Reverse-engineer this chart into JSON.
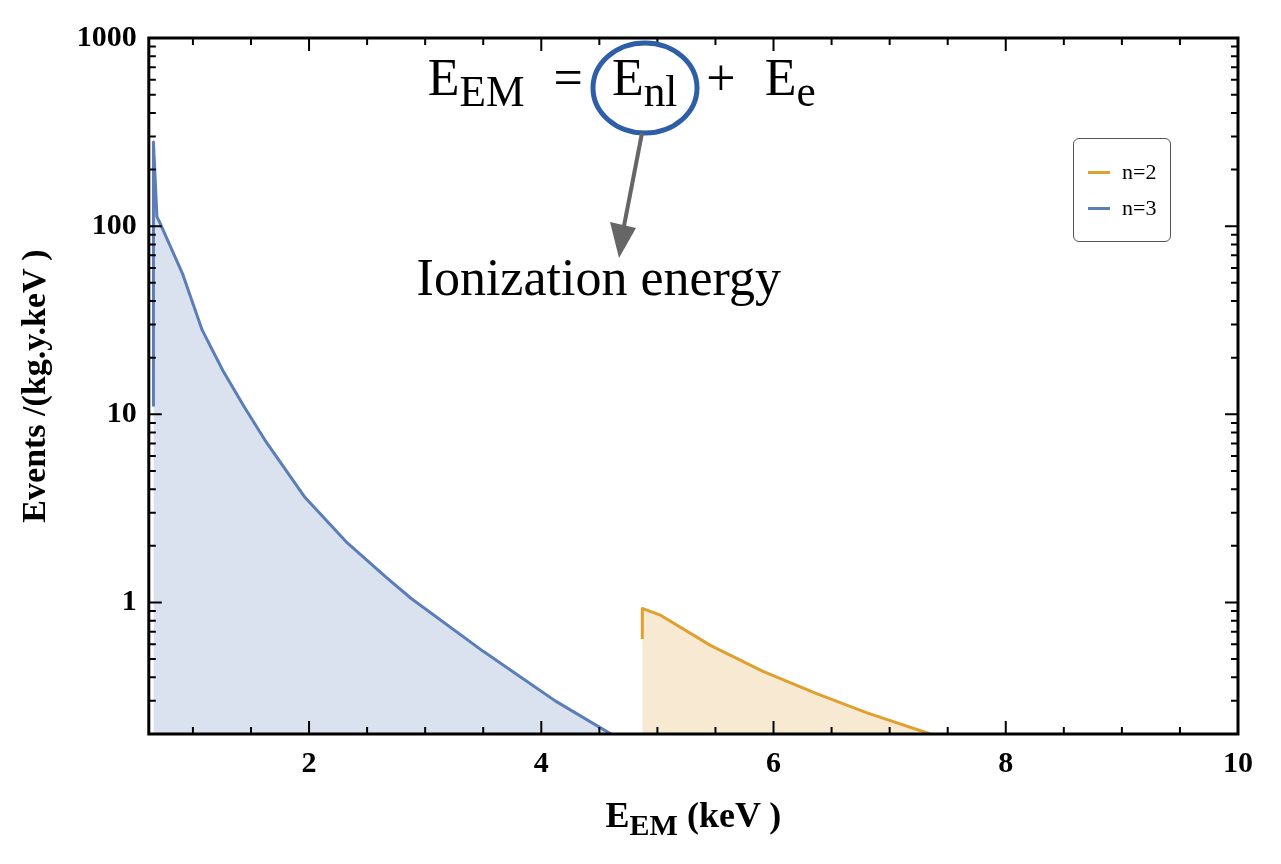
{
  "chart_data": {
    "type": "area",
    "xlabel": "E$_{EM}$  (keV )",
    "ylabel": "Events /(kg.y.keV )",
    "annotations": [
      "E$_{EM}$ = E$_{nl}$ + E$_{e}$",
      "Ionization energy"
    ],
    "series": [
      {
        "name": "n=2",
        "color": "#e0a030",
        "x": [
          4.87,
          4.87,
          5.02,
          5.46,
          5.91,
          6.36,
          6.8,
          7.35
        ],
        "values": [
          0.64,
          0.93,
          0.86,
          0.59,
          0.43,
          0.33,
          0.26,
          0.2
        ]
      },
      {
        "name": "n=3",
        "color": "#5b7db8",
        "x": [
          0.66,
          0.66,
          0.69,
          0.71,
          0.91,
          1.08,
          1.26,
          1.44,
          1.62,
          1.96,
          2.32,
          2.67,
          2.88,
          3.5,
          4.12,
          4.6
        ],
        "values": [
          11,
          280,
          112,
          106,
          56,
          28,
          17,
          11,
          7.3,
          3.65,
          2.1,
          1.35,
          1.05,
          0.55,
          0.3,
          0.2
        ]
      }
    ],
    "xlim": [
      0.62,
      10
    ],
    "xticks": [
      {
        "value": 1,
        "label": null
      },
      {
        "value": 1.5,
        "label": null
      },
      2,
      {
        "value": 2.5,
        "label": null
      },
      {
        "value": 3,
        "label": null
      },
      {
        "value": 3.5,
        "label": null
      },
      4,
      {
        "value": 4.5,
        "label": null
      },
      {
        "value": 5,
        "label": null
      },
      {
        "value": 5.5,
        "label": null
      },
      6,
      {
        "value": 6.5,
        "label": null
      },
      {
        "value": 7,
        "label": null
      },
      {
        "value": 7.5,
        "label": null
      },
      8,
      {
        "value": 8.5,
        "label": null
      },
      {
        "value": 9,
        "label": null
      },
      {
        "value": 9.5,
        "label": null
      },
      10
    ],
    "ylim": [
      0.2,
      1000
    ],
    "yticks": [
      {
        "value": 0.3,
        "label": null
      },
      {
        "value": 0.4,
        "label": null
      },
      {
        "value": 0.5,
        "label": null
      },
      {
        "value": 0.6,
        "label": null
      },
      {
        "value": 0.7,
        "label": null
      },
      {
        "value": 0.8,
        "label": null
      },
      {
        "value": 0.9,
        "label": null
      },
      1,
      {
        "value": 2,
        "label": null
      },
      {
        "value": 3,
        "label": null
      },
      {
        "value": 4,
        "label": null
      },
      {
        "value": 5,
        "label": null
      },
      {
        "value": 6,
        "label": null
      },
      {
        "value": 7,
        "label": null
      },
      {
        "value": 8,
        "label": null
      },
      {
        "value": 9,
        "label": null
      },
      10,
      {
        "value": 20,
        "label": null
      },
      {
        "value": 30,
        "label": null
      },
      {
        "value": 40,
        "label": null
      },
      {
        "value": 50,
        "label": null
      },
      {
        "value": 60,
        "label": null
      },
      {
        "value": 70,
        "label": null
      },
      {
        "value": 80,
        "label": null
      },
      {
        "value": 90,
        "label": null
      },
      100,
      {
        "value": 200,
        "label": null
      },
      {
        "value": 300,
        "label": null
      },
      {
        "value": 400,
        "label": null
      },
      {
        "value": 500,
        "label": null
      },
      {
        "value": 600,
        "label": null
      },
      {
        "value": 700,
        "label": null
      },
      {
        "value": 800,
        "label": null
      },
      {
        "value": 900,
        "label": null
      },
      1000
    ],
    "log": "y",
    "legend": "top right",
    "grid": false
  }
}
